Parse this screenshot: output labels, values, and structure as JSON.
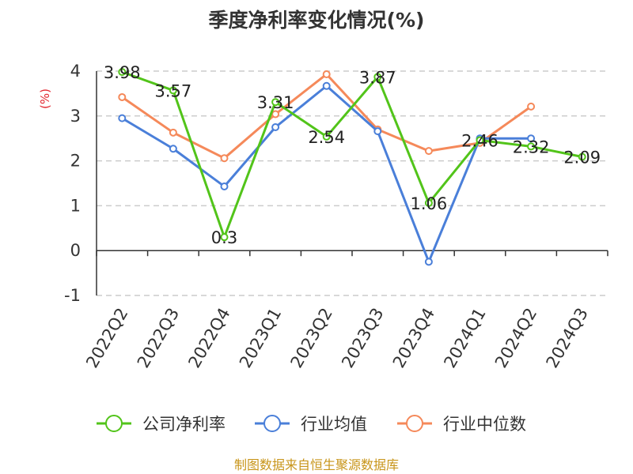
{
  "title": "季度净利率变化情况(%)",
  "source": "制图数据来自恒生聚源数据库",
  "chart_data": {
    "type": "line",
    "title": "季度净利率变化情况(%)",
    "ylabel": "(%)",
    "xlabel": "",
    "ylim": [
      -1,
      4
    ],
    "yticks": [
      -1,
      0,
      1,
      2,
      3,
      4
    ],
    "grid": true,
    "legend_position": "bottom",
    "categories": [
      "2022Q2",
      "2022Q3",
      "2022Q4",
      "2023Q1",
      "2023Q2",
      "2023Q3",
      "2023Q4",
      "2024Q1",
      "2024Q2",
      "2024Q3"
    ],
    "series": [
      {
        "name": "公司净利率",
        "color": "#52c41a",
        "values": [
          3.98,
          3.57,
          0.3,
          3.31,
          2.54,
          3.87,
          1.06,
          2.46,
          2.32,
          2.09
        ],
        "labels": [
          "3.98",
          "3.57",
          "0.3",
          "3.31",
          "2.54",
          "3.87",
          "1.06",
          "2.46",
          "2.32",
          "2.09"
        ]
      },
      {
        "name": "行业均值",
        "color": "#4a7fd9",
        "values": [
          2.95,
          2.27,
          1.43,
          2.75,
          3.67,
          2.66,
          -0.25,
          2.5,
          2.5,
          null
        ]
      },
      {
        "name": "行业中位数",
        "color": "#f5895a",
        "values": [
          3.42,
          2.63,
          2.06,
          3.04,
          3.93,
          2.7,
          2.22,
          2.4,
          3.21,
          null
        ]
      }
    ]
  }
}
